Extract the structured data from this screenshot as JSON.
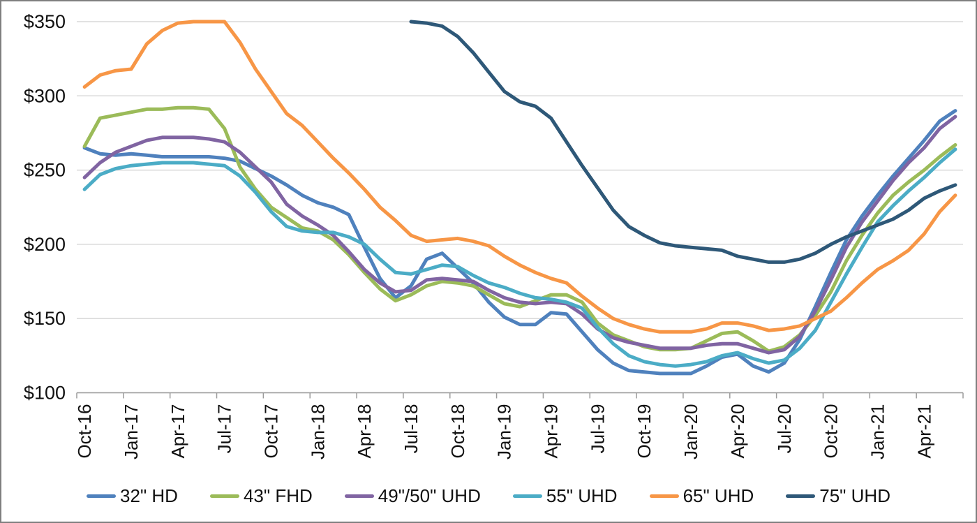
{
  "chart_data": {
    "type": "line",
    "title": "",
    "xlabel": "",
    "ylabel": "",
    "y_axis": {
      "min": 100,
      "max": 350,
      "tick_step": 50,
      "tick_labels": [
        "$350",
        "$300",
        "$250",
        "$200",
        "$150",
        "$100"
      ],
      "tick_values": [
        350,
        300,
        250,
        200,
        150,
        100
      ]
    },
    "x": [
      "Oct-16",
      "Nov-16",
      "Dec-16",
      "Jan-17",
      "Feb-17",
      "Mar-17",
      "Apr-17",
      "May-17",
      "Jun-17",
      "Jul-17",
      "Aug-17",
      "Sep-17",
      "Oct-17",
      "Nov-17",
      "Dec-17",
      "Jan-18",
      "Feb-18",
      "Mar-18",
      "Apr-18",
      "May-18",
      "Jun-18",
      "Jul-18",
      "Aug-18",
      "Sep-18",
      "Oct-18",
      "Nov-18",
      "Dec-18",
      "Jan-19",
      "Feb-19",
      "Mar-19",
      "Apr-19",
      "May-19",
      "Jun-19",
      "Jul-19",
      "Aug-19",
      "Sep-19",
      "Oct-19",
      "Nov-19",
      "Dec-19",
      "Jan-20",
      "Feb-20",
      "Mar-20",
      "Apr-20",
      "May-20",
      "Jun-20",
      "Jul-20",
      "Aug-20",
      "Sep-20",
      "Oct-20",
      "Nov-20",
      "Dec-20",
      "Jan-21",
      "Feb-21",
      "Mar-21",
      "Apr-21",
      "May-21",
      "Jun-21"
    ],
    "x_tick_every": 3,
    "x_tick_labels": [
      "Oct-16",
      "Jan-17",
      "Apr-17",
      "Jul-17",
      "Oct-17",
      "Jan-18",
      "Apr-18",
      "Jul-18",
      "Oct-18",
      "Jan-19",
      "Apr-19",
      "Jul-19",
      "Oct-19",
      "Jan-20",
      "Apr-20",
      "Jul-20",
      "Oct-20",
      "Jan-21",
      "Apr-21"
    ],
    "grid": "horizontal",
    "legend_position": "bottom",
    "series": [
      {
        "name": "32\" HD",
        "color": "#4F81BD",
        "values": [
          265,
          261,
          260,
          261,
          260,
          259,
          259,
          259,
          259,
          258,
          256,
          251,
          246,
          240,
          233,
          228,
          225,
          220,
          198,
          177,
          164,
          172,
          190,
          194,
          184,
          174,
          161,
          151,
          146,
          146,
          154,
          153,
          141,
          129,
          120,
          115,
          114,
          113,
          113,
          113,
          118,
          124,
          126,
          118,
          114,
          120,
          136,
          158,
          181,
          203,
          219,
          233,
          246,
          258,
          270,
          283,
          290
        ]
      },
      {
        "name": "43\" FHD",
        "color": "#9BBB59",
        "values": [
          266,
          285,
          287,
          289,
          291,
          291,
          292,
          292,
          291,
          278,
          252,
          237,
          225,
          218,
          211,
          209,
          203,
          193,
          181,
          170,
          162,
          166,
          172,
          175,
          174,
          172,
          166,
          160,
          158,
          162,
          166,
          166,
          161,
          147,
          139,
          135,
          131,
          129,
          129,
          130,
          135,
          140,
          141,
          135,
          128,
          131,
          139,
          152,
          168,
          189,
          206,
          221,
          233,
          242,
          250,
          259,
          267
        ]
      },
      {
        "name": "49\"/50\" UHD",
        "color": "#8064A2",
        "values": [
          245,
          255,
          262,
          266,
          270,
          272,
          272,
          272,
          271,
          269,
          262,
          252,
          242,
          227,
          219,
          213,
          206,
          195,
          183,
          174,
          168,
          169,
          176,
          177,
          176,
          175,
          169,
          164,
          161,
          160,
          161,
          160,
          153,
          143,
          137,
          134,
          132,
          130,
          130,
          130,
          132,
          133,
          133,
          130,
          127,
          129,
          138,
          155,
          176,
          198,
          215,
          229,
          243,
          255,
          265,
          278,
          286
        ]
      },
      {
        "name": "55\" UHD",
        "color": "#4BACC6",
        "values": [
          237,
          247,
          251,
          253,
          254,
          255,
          255,
          255,
          254,
          253,
          246,
          235,
          222,
          212,
          209,
          208,
          208,
          205,
          200,
          190,
          181,
          180,
          183,
          186,
          185,
          179,
          174,
          171,
          167,
          164,
          163,
          161,
          157,
          144,
          133,
          125,
          121,
          119,
          118,
          119,
          121,
          125,
          127,
          123,
          120,
          122,
          130,
          142,
          161,
          180,
          198,
          215,
          226,
          236,
          245,
          255,
          264
        ]
      },
      {
        "name": "65\" UHD",
        "color": "#F79646",
        "values": [
          306,
          314,
          317,
          318,
          335,
          344,
          349,
          350,
          350,
          350,
          336,
          318,
          303,
          288,
          280,
          269,
          258,
          248,
          237,
          225,
          216,
          206,
          202,
          203,
          204,
          202,
          199,
          192,
          186,
          181,
          177,
          174,
          165,
          157,
          150,
          146,
          143,
          141,
          141,
          141,
          143,
          147,
          147,
          145,
          142,
          143,
          145,
          150,
          155,
          164,
          174,
          183,
          189,
          196,
          207,
          222,
          233
        ]
      },
      {
        "name": "75\" UHD",
        "color": "#2E5878",
        "values": [
          null,
          null,
          null,
          null,
          null,
          null,
          null,
          null,
          null,
          null,
          null,
          null,
          null,
          null,
          null,
          null,
          null,
          null,
          null,
          null,
          null,
          350,
          349,
          347,
          340,
          329,
          316,
          303,
          296,
          293,
          285,
          269,
          253,
          238,
          223,
          212,
          206,
          201,
          199,
          198,
          197,
          196,
          192,
          190,
          188,
          188,
          190,
          194,
          200,
          205,
          209,
          213,
          217,
          223,
          231,
          236,
          240
        ]
      }
    ]
  }
}
